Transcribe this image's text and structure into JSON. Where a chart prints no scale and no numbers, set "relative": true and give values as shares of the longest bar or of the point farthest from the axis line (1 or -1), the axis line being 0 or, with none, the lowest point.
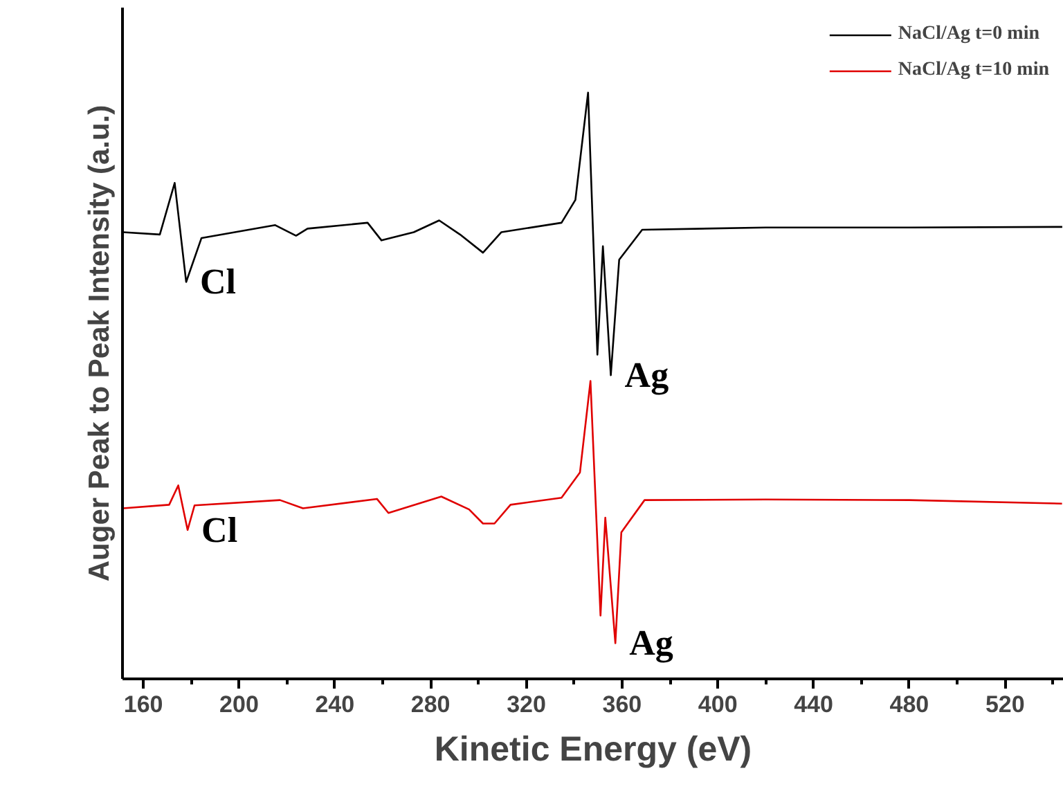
{
  "chart_data": {
    "type": "line",
    "relative": true,
    "xlabel": "Kinetic Energy (eV)",
    "ylabel": "Auger Peak to Peak Intensity (a.u.)",
    "xlim": [
      151.3,
      544.5
    ],
    "xticks": [
      160,
      {
        "value": 180,
        "label": null
      },
      200,
      {
        "value": 220,
        "label": null
      },
      240,
      {
        "value": 260,
        "label": null
      },
      280,
      {
        "value": 300,
        "label": null
      },
      320,
      {
        "value": 340,
        "label": null
      },
      360,
      {
        "value": 380,
        "label": null
      },
      400,
      {
        "value": 420,
        "label": null
      },
      440,
      {
        "value": 460,
        "label": null
      },
      480,
      {
        "value": 500,
        "label": null
      },
      520,
      {
        "value": 540,
        "label": null
      }
    ],
    "tick_labels": "x",
    "grid": false,
    "legend": "top right",
    "marker": "none",
    "line_style": "solid",
    "series": [
      {
        "name": "NaCl/Ag t=0 min",
        "color": "#000000",
        "x": [
          151.5,
          166.9,
          173.1,
          177.9,
          184.3,
          215.1,
          223.8,
          228.6,
          253.7,
          259.5,
          273.0,
          283.6,
          292.3,
          301.9,
          309.6,
          334.7,
          340.5,
          345.8,
          349.7,
          352.0,
          355.3,
          358.8,
          368.4,
          420,
          480,
          543.9
        ],
        "values": [
          0.762,
          0.758,
          0.846,
          0.677,
          0.752,
          0.774,
          0.756,
          0.768,
          0.778,
          0.748,
          0.762,
          0.782,
          0.758,
          0.727,
          0.762,
          0.778,
          0.817,
          1.0,
          0.553,
          0.738,
          0.518,
          0.715,
          0.766,
          0.77,
          0.77,
          0.771
        ]
      },
      {
        "name": "NaCl/Ag t=10 min",
        "color": "#e00000",
        "x": [
          151.5,
          170.8,
          174.6,
          178.5,
          181.4,
          217.1,
          226.7,
          257.6,
          262.4,
          284.5,
          296.1,
          301.9,
          306.7,
          313.4,
          334.7,
          342.4,
          346.8,
          351.0,
          353.0,
          357.2,
          359.7,
          369.4,
          420,
          480,
          543.8
        ],
        "values": [
          0.291,
          0.297,
          0.33,
          0.254,
          0.296,
          0.305,
          0.291,
          0.307,
          0.283,
          0.311,
          0.289,
          0.265,
          0.265,
          0.297,
          0.309,
          0.352,
          0.508,
          0.108,
          0.275,
          0.061,
          0.25,
          0.305,
          0.306,
          0.305,
          0.299
        ]
      }
    ],
    "annotations": [
      {
        "text": "Cl",
        "x": 177.9,
        "y": 0.677
      },
      {
        "text": "Ag",
        "x": 355.3,
        "y": 0.518
      },
      {
        "text": "Cl",
        "x": 178.5,
        "y": 0.254
      },
      {
        "text": "Ag",
        "x": 357.2,
        "y": 0.061
      }
    ]
  }
}
